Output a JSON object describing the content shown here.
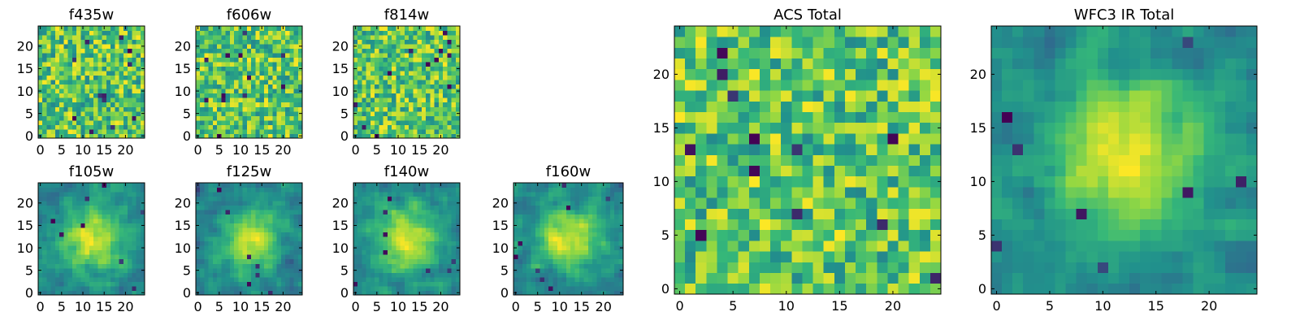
{
  "figure": {
    "background": "#ffffff",
    "colormap": "viridis",
    "colormap_stops": [
      "#440154",
      "#31688e",
      "#21918c",
      "#35b779",
      "#90d743",
      "#fde725"
    ],
    "grid": false,
    "legend": "none"
  },
  "chart_data": [
    {
      "id": "f435w",
      "type": "heatmap",
      "title": "f435w",
      "grid_size": [
        25,
        25
      ],
      "xlim": [
        0,
        24
      ],
      "ylim": [
        0,
        24
      ],
      "xticks": [
        0,
        5,
        10,
        15,
        20
      ],
      "yticks": [
        0,
        5,
        10,
        15,
        20
      ],
      "texture": "fine-noise",
      "value_range": [
        0,
        1
      ]
    },
    {
      "id": "f606w",
      "type": "heatmap",
      "title": "f606w",
      "grid_size": [
        25,
        25
      ],
      "xlim": [
        0,
        24
      ],
      "ylim": [
        0,
        24
      ],
      "xticks": [
        0,
        5,
        10,
        15,
        20
      ],
      "yticks": [
        0,
        5,
        10,
        15,
        20
      ],
      "texture": "fine-noise",
      "value_range": [
        0,
        1
      ]
    },
    {
      "id": "f814w",
      "type": "heatmap",
      "title": "f814w",
      "grid_size": [
        25,
        25
      ],
      "xlim": [
        0,
        24
      ],
      "ylim": [
        0,
        24
      ],
      "xticks": [
        0,
        5,
        10,
        15,
        20
      ],
      "yticks": [
        0,
        5,
        10,
        15,
        20
      ],
      "texture": "fine-noise",
      "value_range": [
        0,
        1
      ]
    },
    {
      "id": "f105w",
      "type": "heatmap",
      "title": "f105w",
      "grid_size": [
        25,
        25
      ],
      "xlim": [
        0,
        24
      ],
      "ylim": [
        0,
        24
      ],
      "xticks": [
        0,
        5,
        10,
        15,
        20
      ],
      "yticks": [
        0,
        5,
        10,
        15,
        20
      ],
      "texture": "smooth-blob",
      "value_range": [
        0,
        1
      ]
    },
    {
      "id": "f125w",
      "type": "heatmap",
      "title": "f125w",
      "grid_size": [
        25,
        25
      ],
      "xlim": [
        0,
        24
      ],
      "ylim": [
        0,
        24
      ],
      "xticks": [
        0,
        5,
        10,
        15,
        20
      ],
      "yticks": [
        0,
        5,
        10,
        15,
        20
      ],
      "texture": "smooth-blob",
      "value_range": [
        0,
        1
      ]
    },
    {
      "id": "f140w",
      "type": "heatmap",
      "title": "f140w",
      "grid_size": [
        25,
        25
      ],
      "xlim": [
        0,
        24
      ],
      "ylim": [
        0,
        24
      ],
      "xticks": [
        0,
        5,
        10,
        15,
        20
      ],
      "yticks": [
        0,
        5,
        10,
        15,
        20
      ],
      "texture": "smooth-blob",
      "value_range": [
        0,
        1
      ]
    },
    {
      "id": "f160w",
      "type": "heatmap",
      "title": "f160w",
      "grid_size": [
        25,
        25
      ],
      "xlim": [
        0,
        24
      ],
      "ylim": [
        0,
        24
      ],
      "xticks": [
        0,
        5,
        10,
        15,
        20
      ],
      "yticks": [
        0,
        5,
        10,
        15,
        20
      ],
      "texture": "smooth-blob",
      "value_range": [
        0,
        1
      ]
    },
    {
      "id": "acs-total",
      "type": "heatmap",
      "title": "ACS Total",
      "grid_size": [
        25,
        25
      ],
      "xlim": [
        0,
        24
      ],
      "ylim": [
        0,
        24
      ],
      "xticks": [
        0,
        5,
        10,
        15,
        20
      ],
      "yticks": [
        0,
        5,
        10,
        15,
        20
      ],
      "texture": "fine-noise",
      "value_range": [
        0,
        1
      ]
    },
    {
      "id": "wfc3-ir-total",
      "type": "heatmap",
      "title": "WFC3 IR Total",
      "grid_size": [
        25,
        25
      ],
      "xlim": [
        0,
        24
      ],
      "ylim": [
        0,
        24
      ],
      "xticks": [
        0,
        5,
        10,
        15,
        20
      ],
      "yticks": [
        0,
        5,
        10,
        15,
        20
      ],
      "texture": "smooth-blob",
      "value_range": [
        0,
        1
      ]
    }
  ]
}
